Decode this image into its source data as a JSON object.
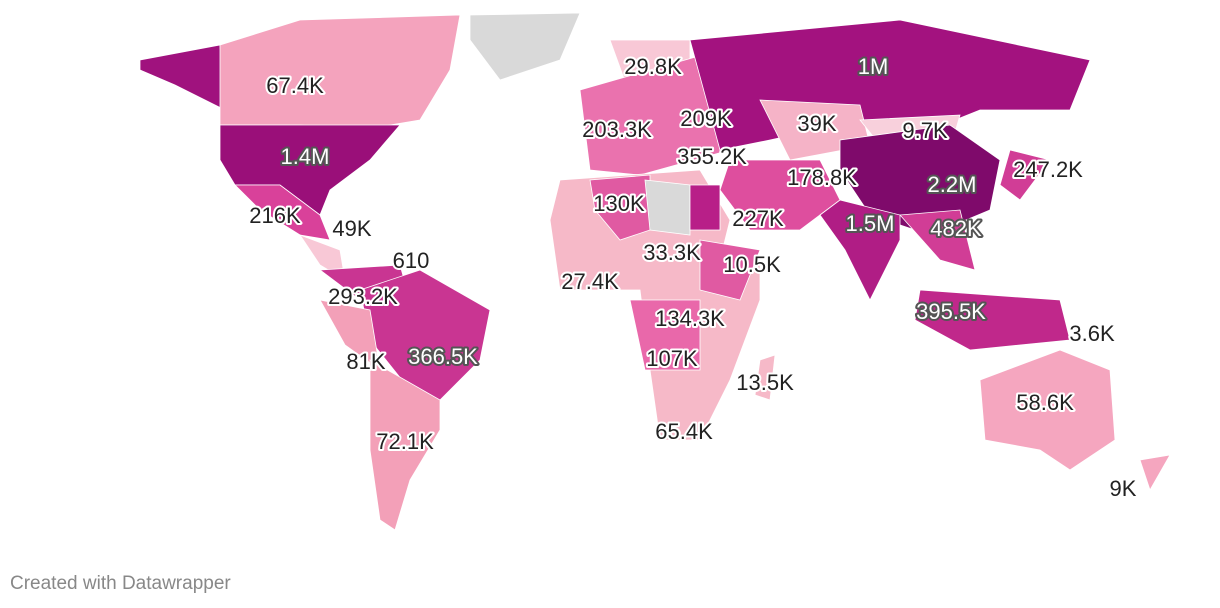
{
  "map": {
    "labels": [
      "67.4K",
      "1.4M",
      "216K",
      "49K",
      "610",
      "293.2K",
      "81K",
      "366.5K",
      "72.1K",
      "29.8K",
      "1M",
      "203.3K",
      "209K",
      "39K",
      "9.7K",
      "355.2K",
      "178.8K",
      "2.2M",
      "247.2K",
      "130K",
      "227K",
      "1.5M",
      "482K",
      "33.3K",
      "10.5K",
      "27.4K",
      "134.3K",
      "107K",
      "395.5K",
      "3.6K",
      "13.5K",
      "58.6K",
      "65.4K",
      "9K"
    ]
  },
  "footer": "Created with Datawrapper"
}
